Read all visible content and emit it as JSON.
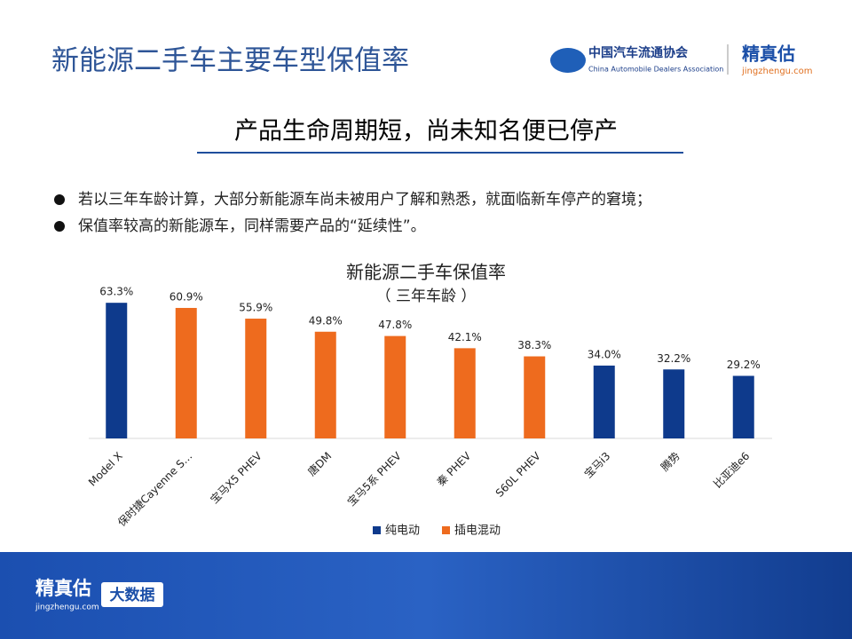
{
  "header": {
    "title": "新能源二手车主要车型保值率",
    "org_name": "中国汽车流通协会",
    "org_name_en": "China Automobile Dealers Association",
    "brand": "精真估",
    "brand_url": "jingzhengu.com"
  },
  "banner": "产品生命周期短，尚未知名便已停产",
  "bullets": [
    "若以三年车龄计算，大部分新能源车尚未被用户了解和熟悉，就面临新车停产的窘境；",
    "保值率较高的新能源车，同样需要产品的“延续性”。"
  ],
  "chart_data": {
    "type": "bar",
    "title": "新能源二手车保值率",
    "subtitle": "（ 三年车龄 ）",
    "categories": [
      "Model X",
      "保时捷Cayenne S…",
      "宝马X5 PHEV",
      "唐DM",
      "宝马5系 PHEV",
      "秦 PHEV",
      "S60L PHEV",
      "宝马i3",
      "腾势",
      "比亚迪e6"
    ],
    "series": [
      {
        "name": "纯电动",
        "color": "#0e3a8c",
        "values": [
          63.3,
          null,
          null,
          null,
          null,
          null,
          null,
          34.0,
          32.2,
          29.2
        ],
        "value_labels": [
          "63.3%",
          null,
          null,
          null,
          null,
          null,
          null,
          "34.0%",
          "32.2%",
          "29.2%"
        ]
      },
      {
        "name": "插电混动",
        "color": "#ee6b1e",
        "values": [
          null,
          60.9,
          55.9,
          49.8,
          47.8,
          42.1,
          38.3,
          null,
          null,
          null
        ],
        "value_labels": [
          null,
          "60.9%",
          "55.9%",
          "49.8%",
          "47.8%",
          "42.1%",
          "38.3%",
          null,
          null,
          null
        ]
      }
    ],
    "ylim": [
      0,
      70
    ],
    "legend": "bottom"
  },
  "footer": {
    "brand": "精真估",
    "brand_url": "jingzhengu.com",
    "tag": "大数据"
  }
}
